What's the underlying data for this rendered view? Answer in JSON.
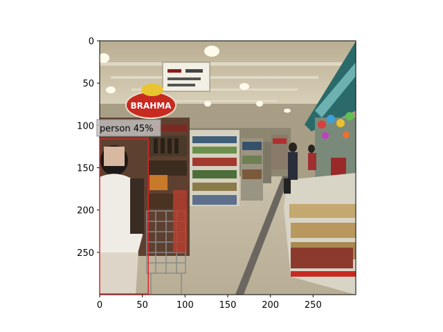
{
  "image": {
    "description_free": true,
    "x_range": [
      0,
      300
    ],
    "y_range": [
      0,
      300
    ],
    "x_ticks": [
      0,
      50,
      100,
      150,
      200,
      250
    ],
    "y_ticks": [
      0,
      50,
      100,
      150,
      200,
      250
    ]
  },
  "signage": {
    "brand_sign": "BRAHMA"
  },
  "detections": [
    {
      "label": "person 45%",
      "box": {
        "x0": 0,
        "y0": 116,
        "x1": 57,
        "y1": 300
      },
      "edge_color": "#d62728"
    }
  ],
  "colors": {
    "box_edge": "#d62728",
    "label_bg": "#c8c8c8"
  }
}
